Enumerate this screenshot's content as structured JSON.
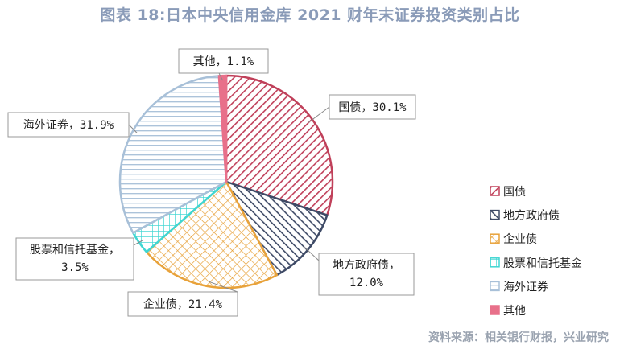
{
  "title": "图表 18:日本中央信用金库 2021 财年末证券投资类别占比",
  "source": "资料来源：相关银行财报，兴业研究",
  "chart_data": {
    "type": "pie",
    "title": "图表 18:日本中央信用金库 2021 财年末证券投资类别占比",
    "slices": [
      {
        "name": "国债",
        "value": 30.1,
        "label": "国债，30.1%",
        "color": "#c0405a",
        "pattern": "diag-right"
      },
      {
        "name": "地方政府债",
        "value": 12.0,
        "label": "地方政府债，12.0%",
        "color": "#3e4a66",
        "pattern": "diag-left"
      },
      {
        "name": "企业债",
        "value": 21.4,
        "label": "企业债，21.4%",
        "color": "#e8a23a",
        "pattern": "cross"
      },
      {
        "name": "股票和信托基金",
        "value": 3.5,
        "label": "股票和信托基金，3.5%",
        "color": "#3fd6d2",
        "pattern": "grid"
      },
      {
        "name": "海外证券",
        "value": 31.9,
        "label": "海外证券，31.9%",
        "color": "#a8c0d8",
        "pattern": "horizontal"
      },
      {
        "name": "其他",
        "value": 1.1,
        "label": "其他，1.1%",
        "color": "#e8708a",
        "pattern": "solid"
      }
    ],
    "legend_position": "right"
  }
}
